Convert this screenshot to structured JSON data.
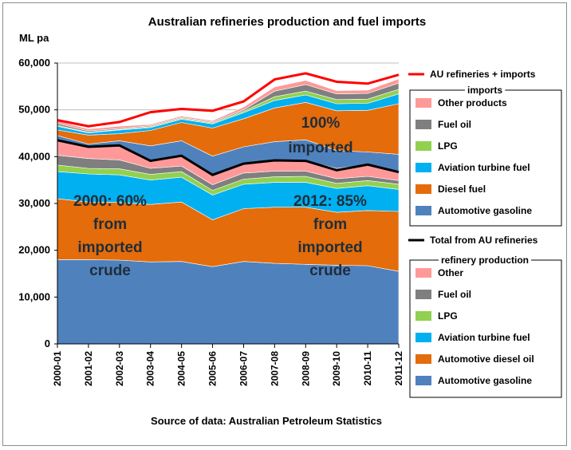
{
  "chart_data": {
    "type": "area",
    "title": "Australian refineries production and fuel imports",
    "ylabel": "ML pa",
    "xlabel": "",
    "source": "Source of data: Australian Petroleum Statistics",
    "ylim": [
      0,
      60000
    ],
    "yticks": [
      "0",
      "10,000",
      "20,000",
      "30,000",
      "40,000",
      "50,000",
      "60,000"
    ],
    "ytick_values": [
      0,
      10000,
      20000,
      30000,
      40000,
      50000,
      60000
    ],
    "categories": [
      "2000-01",
      "2001-02",
      "2002-03",
      "2003-04",
      "2004-05",
      "2005-06",
      "2006-07",
      "2007-08",
      "2008-09",
      "2009-10",
      "2010-11",
      "2011-12"
    ],
    "refinery_series": [
      {
        "name": "Automotive gasoline",
        "color": "#4f81bd",
        "values": [
          18000,
          18000,
          17900,
          17500,
          17600,
          16500,
          17600,
          17200,
          17000,
          16800,
          16700,
          15500
        ]
      },
      {
        "name": "Automotive diesel oil",
        "color": "#e46c0a",
        "values": [
          13000,
          12300,
          12300,
          12300,
          12700,
          10000,
          11300,
          12000,
          12200,
          11300,
          11800,
          12800
        ]
      },
      {
        "name": "Aviation turbine fuel",
        "color": "#00b0f0",
        "values": [
          5800,
          6000,
          5900,
          5200,
          5300,
          5300,
          5200,
          5300,
          5300,
          5100,
          5300,
          4700
        ]
      },
      {
        "name": "LPG",
        "color": "#92d050",
        "values": [
          1400,
          1200,
          1300,
          1200,
          1200,
          1000,
          1100,
          1200,
          1300,
          1100,
          1100,
          1100
        ]
      },
      {
        "name": "Fuel oil",
        "color": "#7f7f7f",
        "values": [
          2100,
          2100,
          1900,
          1300,
          1200,
          1200,
          1300,
          1200,
          1100,
          1000,
          900,
          800
        ]
      },
      {
        "name": "Other",
        "color": "#ff9999",
        "values": [
          3300,
          2500,
          3100,
          1600,
          2200,
          2100,
          2000,
          2300,
          2200,
          2200,
          2500,
          1800
        ]
      }
    ],
    "import_series": [
      {
        "name": "Automotive gasoline",
        "color": "#4f81bd",
        "values": [
          900,
          600,
          1000,
          3200,
          3200,
          4000,
          3600,
          4000,
          4500,
          3800,
          2700,
          3800
        ]
      },
      {
        "name": "Diesel fuel",
        "color": "#e46c0a",
        "values": [
          1200,
          1900,
          1500,
          3300,
          3900,
          6000,
          6000,
          7200,
          8000,
          8500,
          8900,
          10800
        ]
      },
      {
        "name": "Aviation turbine fuel",
        "color": "#00b0f0",
        "values": [
          800,
          500,
          800,
          600,
          700,
          900,
          1300,
          1600,
          1600,
          1500,
          1500,
          2100
        ]
      },
      {
        "name": "LPG",
        "color": "#92d050",
        "values": [
          200,
          100,
          100,
          200,
          200,
          200,
          300,
          800,
          800,
          900,
          900,
          1000
        ]
      },
      {
        "name": "Fuel oil",
        "color": "#7f7f7f",
        "values": [
          400,
          300,
          200,
          200,
          200,
          200,
          300,
          1200,
          1400,
          1200,
          1200,
          1300
        ]
      },
      {
        "name": "Other products",
        "color": "#ff9999",
        "values": [
          500,
          400,
          500,
          300,
          300,
          300,
          600,
          900,
          900,
          700,
          700,
          900
        ]
      }
    ],
    "line_series": [
      {
        "name": "AU refineries + imports",
        "color": "#ff0000",
        "values": [
          47800,
          46500,
          47400,
          49500,
          50200,
          49800,
          51800,
          56500,
          57800,
          56000,
          55600,
          57500
        ]
      },
      {
        "name": "Total from AU refineries",
        "color": "#000000",
        "values": [
          43500,
          42100,
          42400,
          39100,
          40200,
          36100,
          38500,
          39200,
          39100,
          37100,
          38300,
          36700
        ]
      }
    ],
    "legend": {
      "placement": "right",
      "line_top": "AU refineries + imports",
      "group_imports": "imports",
      "imports_items": [
        "Other products",
        "Fuel oil",
        "LPG",
        "Aviation turbine fuel",
        "Diesel fuel",
        "Automotive gasoline"
      ],
      "line_bottom": "Total from AU refineries",
      "group_refinery": "refinery production",
      "refinery_items": [
        "Other",
        "Fuel oil",
        "LPG",
        "Aviation turbine fuel",
        "Automotive diesel oil",
        "Automotive gasoline"
      ]
    },
    "annotations": {
      "left": [
        "2000: 60%",
        "from",
        "imported",
        "crude"
      ],
      "right": [
        "2012: 85%",
        "from",
        "imported",
        "crude"
      ],
      "top": [
        "100%",
        "imported"
      ]
    },
    "grid": true
  }
}
